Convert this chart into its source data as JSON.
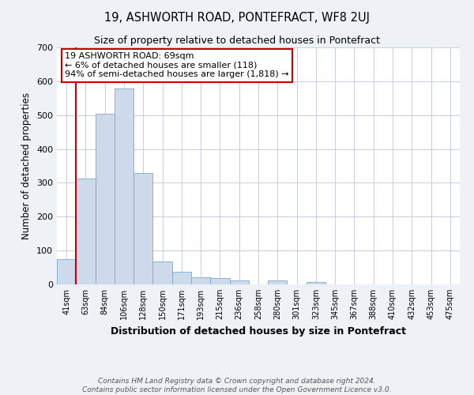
{
  "title": "19, ASHWORTH ROAD, PONTEFRACT, WF8 2UJ",
  "subtitle": "Size of property relative to detached houses in Pontefract",
  "xlabel": "Distribution of detached houses by size in Pontefract",
  "ylabel": "Number of detached properties",
  "bar_labels": [
    "41sqm",
    "63sqm",
    "84sqm",
    "106sqm",
    "128sqm",
    "150sqm",
    "171sqm",
    "193sqm",
    "215sqm",
    "236sqm",
    "258sqm",
    "280sqm",
    "301sqm",
    "323sqm",
    "345sqm",
    "367sqm",
    "388sqm",
    "410sqm",
    "432sqm",
    "453sqm",
    "475sqm"
  ],
  "bar_values": [
    75,
    312,
    505,
    578,
    330,
    68,
    38,
    20,
    18,
    12,
    0,
    11,
    0,
    7,
    0,
    0,
    0,
    0,
    0,
    0,
    0
  ],
  "bar_color": "#ccdaec",
  "bar_edgecolor": "#7ea8c8",
  "vline_color": "#cc0000",
  "annotation_title": "19 ASHWORTH ROAD: 69sqm",
  "annotation_line2": "← 6% of detached houses are smaller (118)",
  "annotation_line3": "94% of semi-detached houses are larger (1,818) →",
  "annotation_box_color": "#ffffff",
  "annotation_border_color": "#cc0000",
  "ylim": [
    0,
    700
  ],
  "yticks": [
    0,
    100,
    200,
    300,
    400,
    500,
    600,
    700
  ],
  "footer_line1": "Contains HM Land Registry data © Crown copyright and database right 2024.",
  "footer_line2": "Contains public sector information licensed under the Open Government Licence v3.0.",
  "background_color": "#eef2f7",
  "plot_bg_color": "#ffffff"
}
